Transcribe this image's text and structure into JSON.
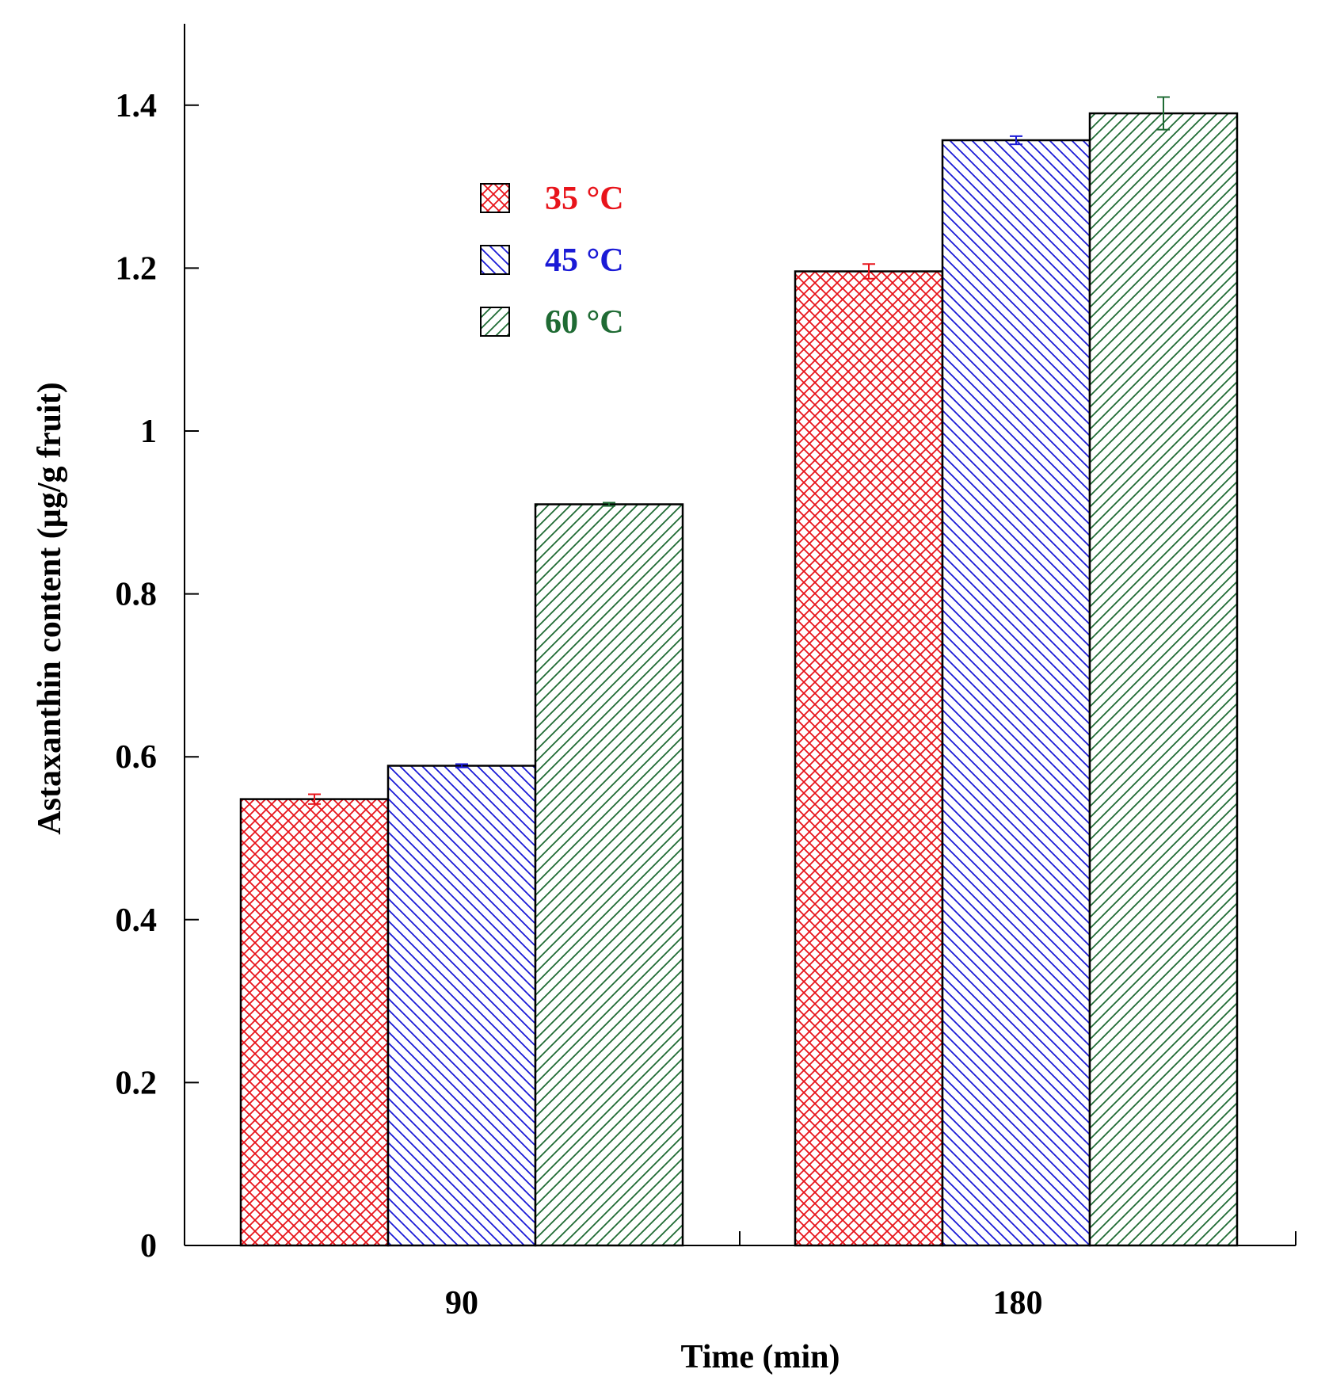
{
  "chart_data": {
    "type": "bar",
    "title": "",
    "xlabel": "Time (min)",
    "ylabel": "Astaxanthin content (µg/g fruit)",
    "ylim": [
      0,
      1.5
    ],
    "yticks": [
      0,
      0.2,
      0.4,
      0.6,
      0.8,
      1,
      1.2,
      1.4
    ],
    "ytick_labels": [
      "0",
      "0.2",
      "0.4",
      "0.6",
      "0.8",
      "1",
      "1.2",
      "1.4"
    ],
    "categories": [
      "90",
      "180"
    ],
    "legend_position": "top-center",
    "grid": false,
    "series": [
      {
        "name": "35 °C",
        "color": "#e8141b",
        "pattern": "crosshatch",
        "values": [
          0.548,
          1.196
        ],
        "errors": [
          0.006,
          0.009
        ]
      },
      {
        "name": "45 °C",
        "color": "#1a1ad6",
        "pattern": "back-diagonal",
        "values": [
          0.589,
          1.357
        ],
        "errors": [
          0.002,
          0.005
        ]
      },
      {
        "name": "60 °C",
        "color": "#1f6b34",
        "pattern": "forward-diagonal",
        "values": [
          0.91,
          1.39
        ],
        "errors": [
          0.002,
          0.02
        ]
      }
    ]
  }
}
